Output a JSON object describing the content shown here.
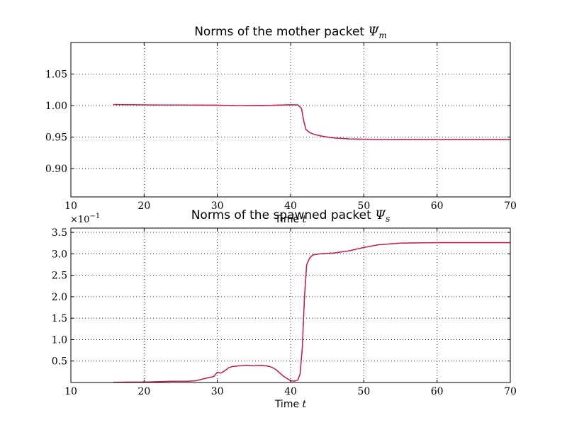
{
  "colors": {
    "series_a": "#d62728",
    "series_b": "#c2185b"
  },
  "chart_data": [
    {
      "type": "line",
      "title": "Norms of the mother packet ",
      "title_math": "Ψ",
      "title_sub": "m",
      "xlabel": "Time ",
      "xlabel_math": "t",
      "xlim": [
        10,
        70
      ],
      "ylim": [
        0.855,
        1.1
      ],
      "xticks": [
        10,
        20,
        30,
        40,
        50,
        60,
        70
      ],
      "xtick_labels": [
        "10",
        "20",
        "30",
        "40",
        "50",
        "60",
        "70"
      ],
      "yticks": [
        0.9,
        0.95,
        1.0,
        1.05
      ],
      "ytick_labels": [
        "0.90",
        "0.95",
        "1.00",
        "1.05"
      ],
      "grid": true,
      "series": [
        {
          "x": [
            15.8,
            20,
            25,
            30,
            33,
            36,
            38,
            40,
            41,
            41.5,
            41.8,
            42.1,
            42.5,
            43,
            44,
            45,
            46,
            48,
            50,
            55,
            60,
            65,
            70
          ],
          "values": [
            1.0015,
            1.001,
            1.0008,
            1.0005,
            0.9998,
            1.0,
            1.0005,
            1.0012,
            1.001,
            0.995,
            0.975,
            0.962,
            0.958,
            0.955,
            0.952,
            0.95,
            0.9485,
            0.947,
            0.9465,
            0.9462,
            0.9462,
            0.9461,
            0.9461
          ]
        },
        {
          "x": [
            15.8,
            20,
            25,
            30,
            33,
            36,
            38,
            40,
            41,
            41.5,
            41.8,
            42.1,
            42.5,
            43,
            44,
            45,
            46,
            48,
            50,
            55,
            60,
            65,
            70
          ],
          "values": [
            1.0015,
            1.001,
            1.0008,
            1.0005,
            0.9998,
            1.0,
            1.0005,
            1.0012,
            1.001,
            0.995,
            0.975,
            0.962,
            0.958,
            0.955,
            0.952,
            0.95,
            0.9485,
            0.947,
            0.9465,
            0.9462,
            0.9462,
            0.9461,
            0.9461
          ]
        }
      ]
    },
    {
      "type": "line",
      "title": "Norms of the spawned packet ",
      "title_math": "Ψ",
      "title_sub": "s",
      "xlabel": "Time ",
      "xlabel_math": "t",
      "offset_base": "×10",
      "offset_exp": "−1",
      "xlim": [
        10,
        70
      ],
      "ylim": [
        0.0,
        0.36
      ],
      "xticks": [
        10,
        20,
        30,
        40,
        50,
        60,
        70
      ],
      "xtick_labels": [
        "10",
        "20",
        "30",
        "40",
        "50",
        "60",
        "70"
      ],
      "yticks": [
        0.05,
        0.1,
        0.15,
        0.2,
        0.25,
        0.3,
        0.35
      ],
      "ytick_labels": [
        "0.5",
        "1.0",
        "1.5",
        "2.0",
        "2.5",
        "3.0",
        "3.5"
      ],
      "grid": true,
      "series": [
        {
          "x": [
            15.8,
            18,
            20,
            22,
            24,
            26,
            27,
            28,
            29,
            29.5,
            30,
            30.5,
            31,
            31.5,
            32,
            33,
            34,
            35,
            36,
            37,
            37.5,
            38,
            39,
            40,
            40.5,
            41,
            41.3,
            41.6,
            41.9,
            42.2,
            42.6,
            43,
            44,
            46,
            48,
            50,
            52,
            55,
            60,
            65,
            70
          ],
          "values": [
            0.0005,
            0.0008,
            0.001,
            0.002,
            0.003,
            0.003,
            0.004,
            0.008,
            0.012,
            0.014,
            0.024,
            0.022,
            0.027,
            0.034,
            0.037,
            0.039,
            0.04,
            0.039,
            0.04,
            0.038,
            0.035,
            0.03,
            0.015,
            0.004,
            0.003,
            0.006,
            0.02,
            0.08,
            0.2,
            0.275,
            0.29,
            0.297,
            0.3,
            0.302,
            0.307,
            0.315,
            0.321,
            0.325,
            0.326,
            0.326,
            0.326
          ]
        },
        {
          "x": [
            15.8,
            18,
            20,
            22,
            24,
            26,
            27,
            28,
            29,
            29.5,
            30,
            30.5,
            31,
            31.5,
            32,
            33,
            34,
            35,
            36,
            37,
            37.5,
            38,
            39,
            40,
            40.5,
            41,
            41.3,
            41.6,
            41.9,
            42.2,
            42.6,
            43,
            44,
            46,
            48,
            50,
            52,
            55,
            60,
            65,
            70
          ],
          "values": [
            0.0005,
            0.0008,
            0.001,
            0.002,
            0.003,
            0.003,
            0.004,
            0.008,
            0.012,
            0.014,
            0.024,
            0.022,
            0.027,
            0.034,
            0.037,
            0.039,
            0.04,
            0.039,
            0.04,
            0.038,
            0.035,
            0.03,
            0.015,
            0.004,
            0.003,
            0.006,
            0.02,
            0.08,
            0.2,
            0.275,
            0.29,
            0.297,
            0.3,
            0.302,
            0.307,
            0.315,
            0.321,
            0.325,
            0.326,
            0.326,
            0.326
          ]
        }
      ]
    }
  ]
}
